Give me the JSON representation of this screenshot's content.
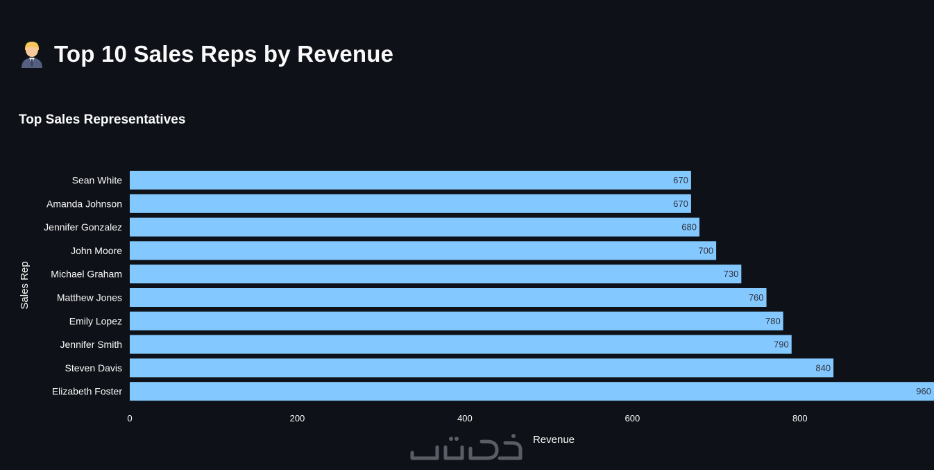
{
  "header": {
    "title": "Top 10 Sales Reps by Revenue",
    "icon": "office-worker-icon"
  },
  "chart_data": {
    "type": "bar",
    "orientation": "horizontal",
    "title": "Top Sales Representatives",
    "xlabel": "Revenue",
    "ylabel": "Sales Rep",
    "categories": [
      "Sean White",
      "Amanda Johnson",
      "Jennifer Gonzalez",
      "John Moore",
      "Michael Graham",
      "Matthew Jones",
      "Emily Lopez",
      "Jennifer Smith",
      "Steven Davis",
      "Elizabeth Foster"
    ],
    "values": [
      670,
      670,
      680,
      700,
      730,
      760,
      780,
      790,
      840,
      960
    ],
    "data_labels": [
      "670",
      "670",
      "680",
      "700",
      "730",
      "760",
      "780",
      "790",
      "840",
      "960"
    ],
    "x_ticks": [
      0,
      200,
      400,
      600,
      800
    ],
    "x_tick_labels": [
      "0",
      "200",
      "400",
      "600",
      "800"
    ],
    "xlim": [
      0,
      960
    ],
    "grid": false,
    "bar_color": "#83c9ff",
    "label_color": "#31333f"
  },
  "watermark": {
    "logo": "khamsat-logo"
  }
}
